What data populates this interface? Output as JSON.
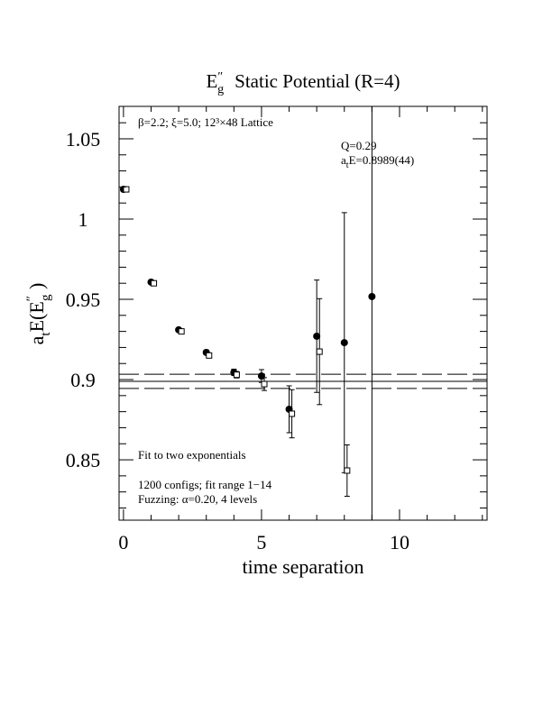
{
  "chart_data": {
    "type": "errorbar",
    "title_parts": [
      "E",
      "″",
      "g",
      "Static Potential (R=4)"
    ],
    "xlabel": "time separation",
    "ylabel_parts": [
      "a",
      "t",
      "E(E",
      "″",
      "g",
      " )"
    ],
    "annotations": [
      "β=2.2; ξ=5.0; 12³×48 Lattice",
      "Q=0.29",
      "Fit to two exponentials",
      "1200 configs; fit range 1−14",
      "Fuzzing: α=0.20, 4 levels"
    ],
    "fit_label_parts": [
      "a",
      "t",
      "E=0.8989(44)"
    ],
    "xlim": [
      -0.16,
      13.17
    ],
    "ylim": [
      0.8124,
      1.0702
    ],
    "xticks": [
      0,
      5,
      10
    ],
    "xminorticks": [
      1,
      2,
      3,
      4,
      6,
      7,
      8,
      9,
      11,
      12,
      13
    ],
    "yticks": [
      0.85,
      0.9,
      0.95,
      1,
      1.05
    ],
    "yminorticks": [
      0.82,
      0.83,
      0.84,
      0.86,
      0.87,
      0.88,
      0.89,
      0.91,
      0.92,
      0.93,
      0.94,
      0.96,
      0.97,
      0.98,
      0.99,
      1.01,
      1.02,
      1.03,
      1.04,
      1.06
    ],
    "series": [
      {
        "marker": "filled-circle",
        "color": "#000000",
        "x": [
          0,
          1,
          2,
          3,
          4,
          5,
          6,
          7,
          8,
          9
        ],
        "values": [
          1.0185,
          0.9607,
          0.931,
          0.9169,
          0.9045,
          0.9022,
          0.8815,
          0.927,
          0.923,
          0.9517
        ],
        "errors": [
          0.001,
          0.001,
          0.001,
          0.0015,
          0.002,
          0.004,
          0.0146,
          0.035,
          0.081,
          0.2
        ]
      },
      {
        "marker": "open-square",
        "color": "#000000",
        "x": [
          0.1,
          1.1,
          2.1,
          3.1,
          4.1,
          5.1,
          6.1,
          7.1,
          8.1
        ],
        "values": [
          1.0185,
          0.96,
          0.93,
          0.915,
          0.903,
          0.8972,
          0.8787,
          0.9174,
          0.8433
        ],
        "errors": [
          0.001,
          0.001,
          0.001,
          0.001,
          0.002,
          0.004,
          0.015,
          0.033,
          0.016
        ]
      }
    ],
    "fit": {
      "value": 0.8989,
      "error": 0.0044
    }
  }
}
